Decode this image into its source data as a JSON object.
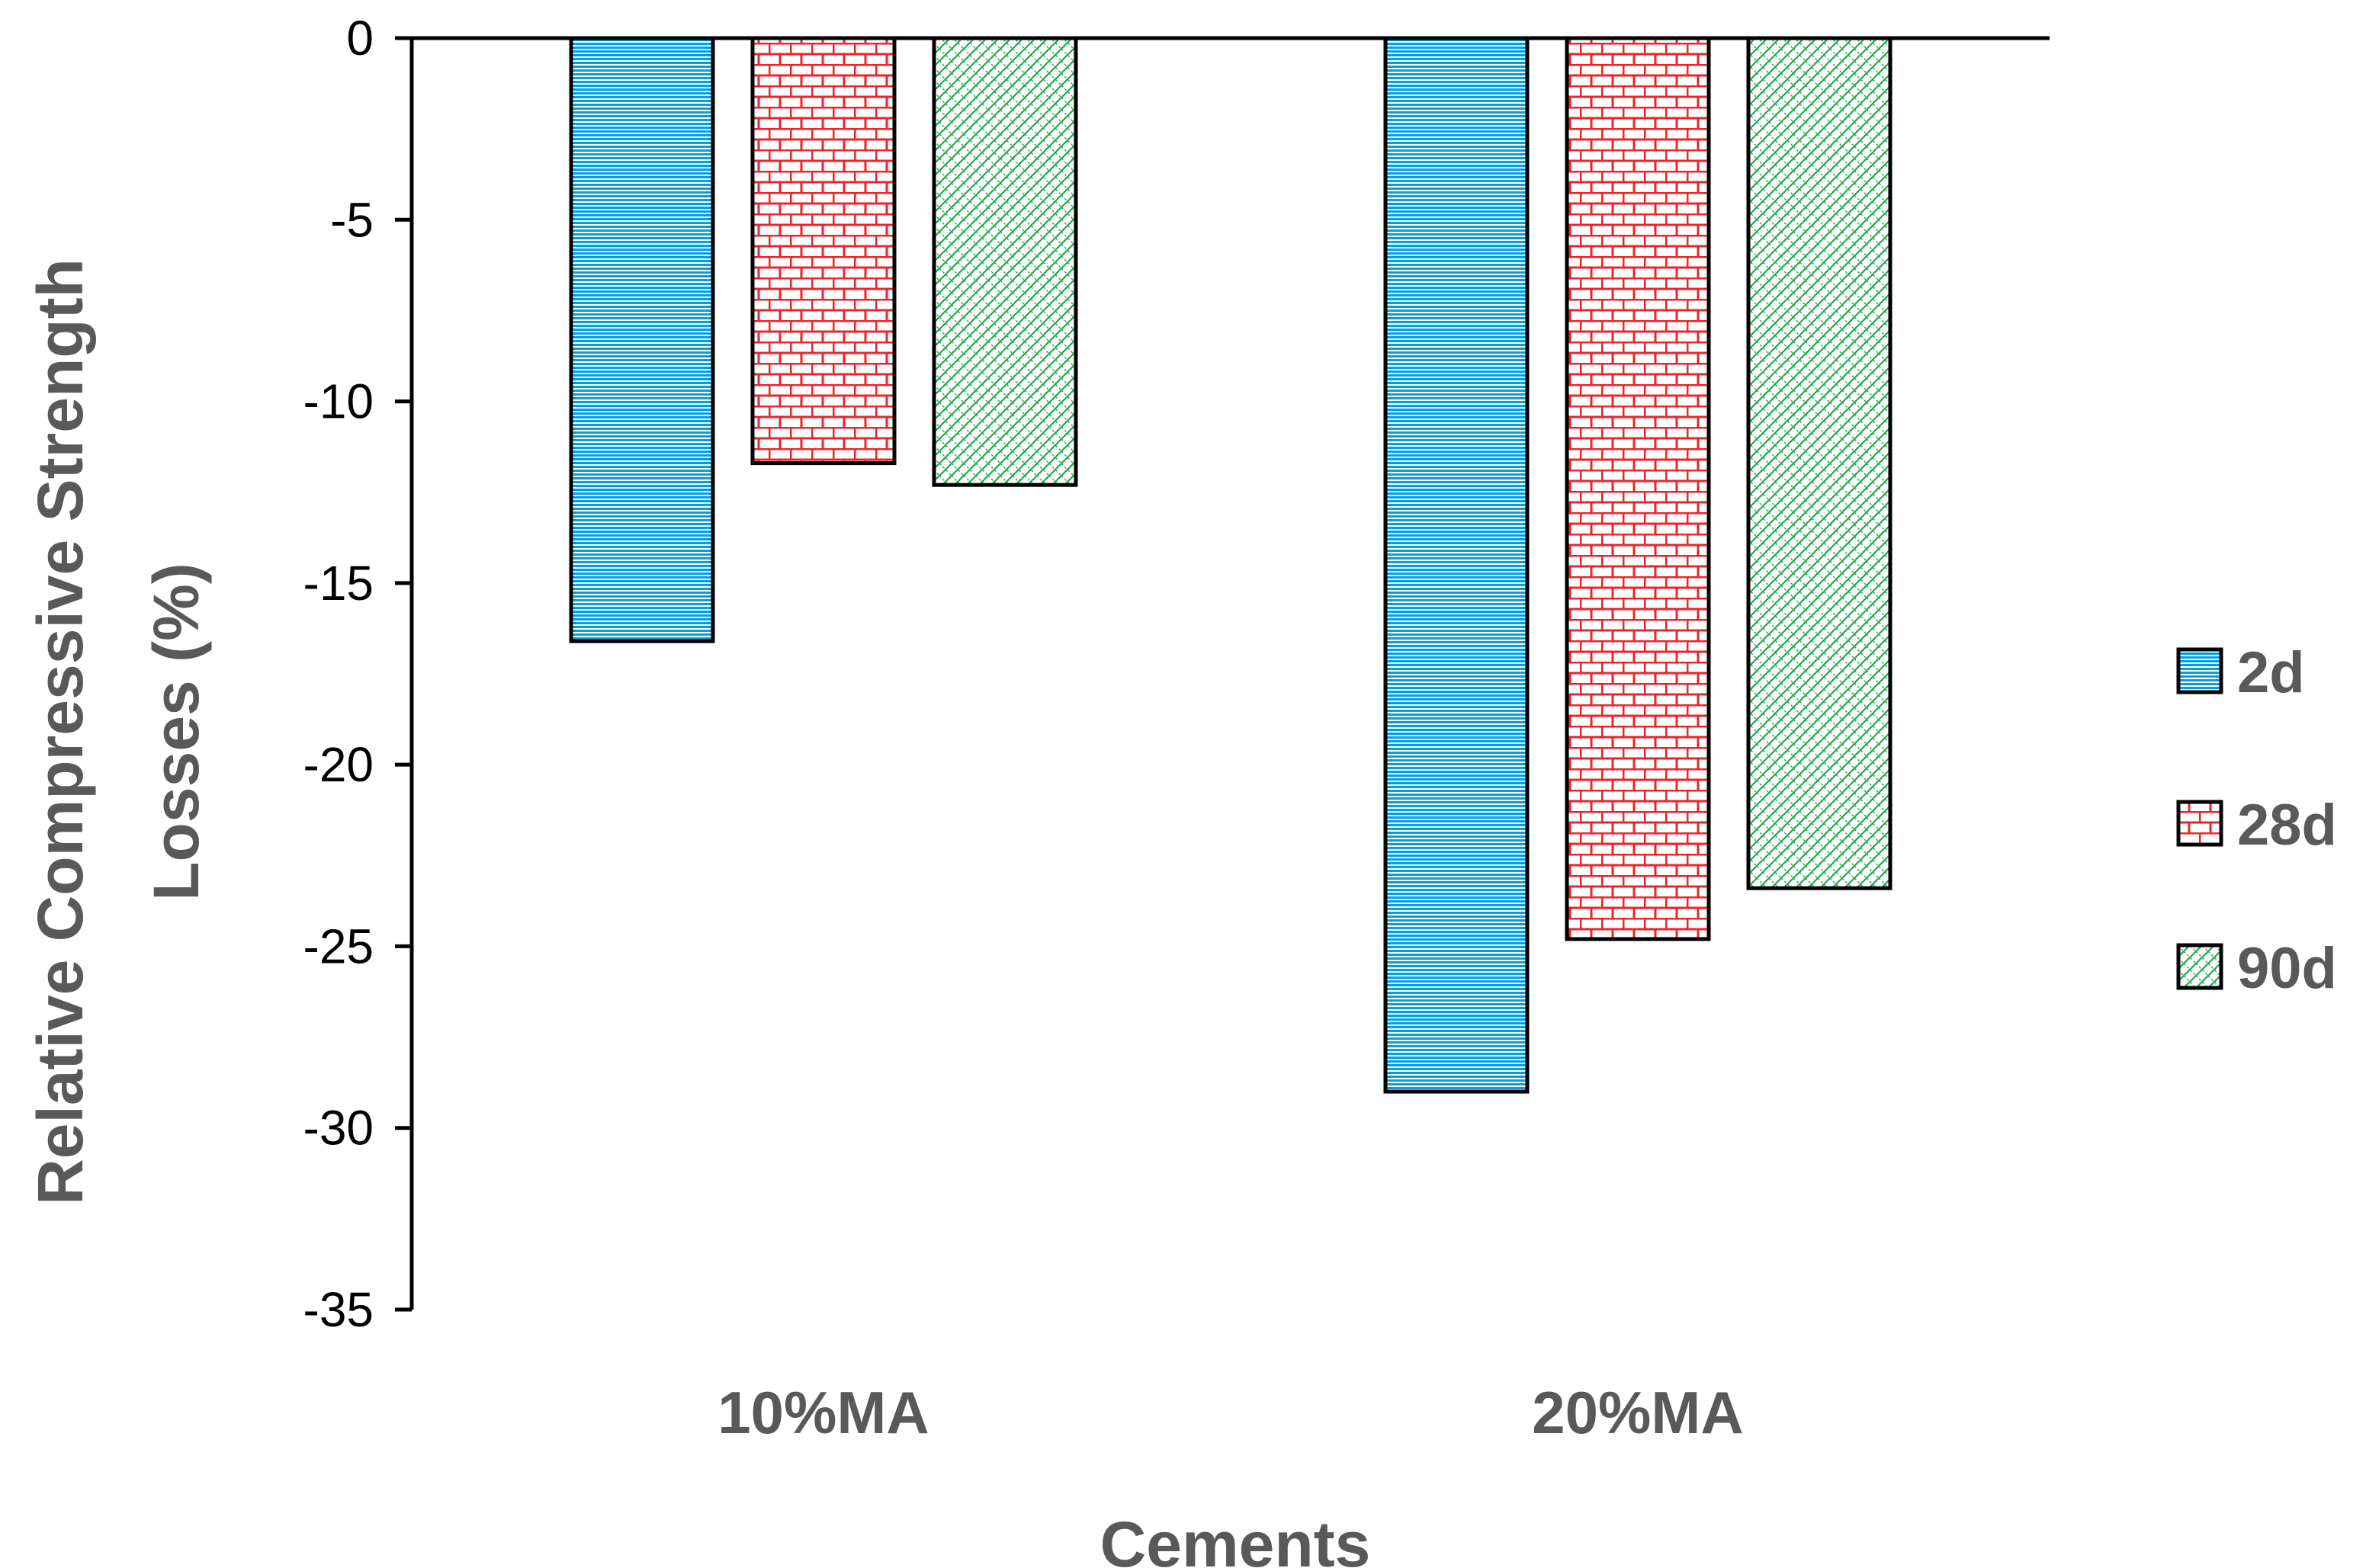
{
  "chart_data": {
    "type": "bar",
    "title": "",
    "xlabel": "Cements",
    "ylabel": [
      "Relative Compressive Strength",
      "Losses (%)"
    ],
    "categories": [
      "10%MA",
      "20%MA"
    ],
    "series": [
      {
        "name": "2d",
        "values": [
          -16.6,
          -29.0
        ],
        "pattern": "horizontal-lines",
        "color": "#00A0E3"
      },
      {
        "name": "28d",
        "values": [
          -11.7,
          -24.8
        ],
        "pattern": "bricks",
        "color": "#E8262B"
      },
      {
        "name": "90d",
        "values": [
          -12.3,
          -23.4
        ],
        "pattern": "diagonal-crosshatch",
        "color": "#1FA84F"
      }
    ],
    "ylim": [
      -35,
      0
    ],
    "yticks": [
      0,
      -5,
      -10,
      -15,
      -20,
      -25,
      -30,
      -35
    ],
    "grid": false,
    "legend": "right"
  }
}
